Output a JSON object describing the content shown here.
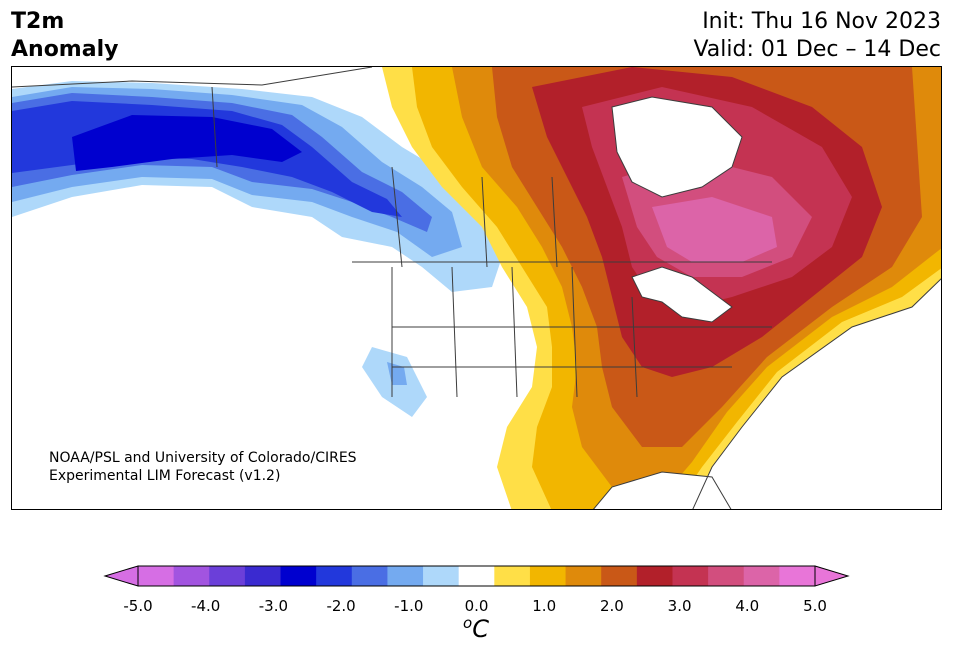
{
  "header": {
    "variable": "T2m",
    "subtitle": "Anomaly",
    "init": "Init: Thu 16 Nov 2023",
    "valid": "Valid: 01 Dec – 14 Dec"
  },
  "credit": {
    "line1": "NOAA/PSL and University of Colorado/CIRES",
    "line2": "Experimental LIM Forecast (v1.2)"
  },
  "colorbar": {
    "unit_prefix": "o",
    "unit": "C",
    "tick_labels": [
      "-5.0",
      "-4.0",
      "-3.0",
      "-2.0",
      "-1.0",
      "0.0",
      "1.0",
      "2.0",
      "3.0",
      "4.0",
      "5.0"
    ],
    "colors": [
      "#d66ee4",
      "#a254e0",
      "#6b3fd9",
      "#3a2ad0",
      "#0000cf",
      "#2238dc",
      "#4a6ee4",
      "#74aaf0",
      "#aed8fa",
      "#ffffff",
      "#ffdf47",
      "#f2b600",
      "#df8a0b",
      "#c95817",
      "#b2202a",
      "#c43352",
      "#d24e7e",
      "#dc64a8",
      "#e875d8"
    ],
    "extend_low_color": "#d66ee4",
    "extend_high_color": "#e875d8"
  },
  "map": {
    "region": "North America",
    "ocean_color": "#ffffff",
    "border_color": "#3c3c3c"
  }
}
